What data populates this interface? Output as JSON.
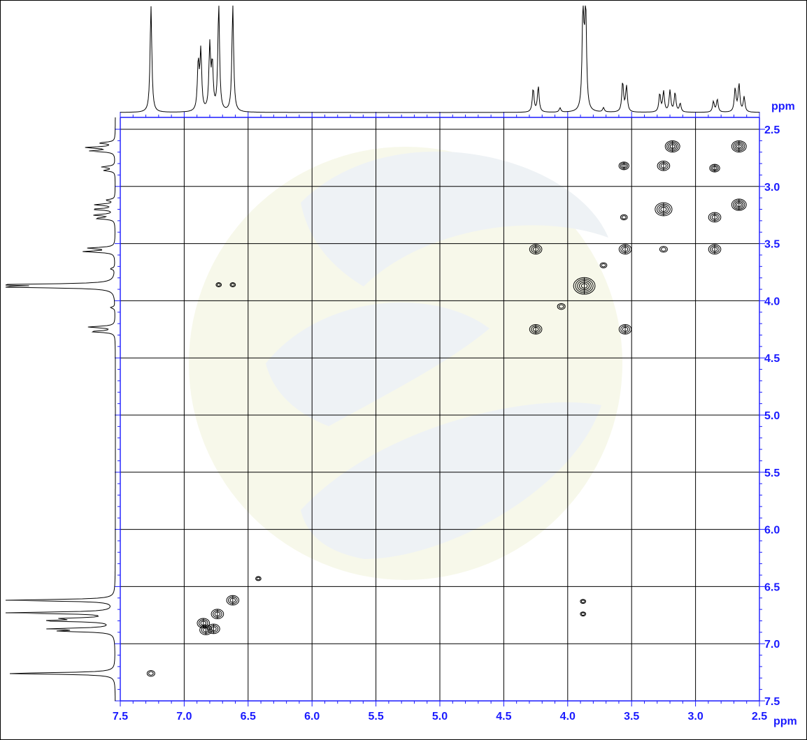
{
  "chart_data": {
    "type": "scatter",
    "title": "",
    "x_axis": {
      "unit_label": "ppm",
      "range": [
        7.5,
        2.5
      ],
      "reversed": true,
      "tick_labels": [
        "7.5",
        "7.0",
        "6.5",
        "6.0",
        "5.5",
        "5.0",
        "4.5",
        "4.0",
        "3.5",
        "3.0",
        "2.5"
      ]
    },
    "y_axis": {
      "unit_label": "ppm",
      "range": [
        2.5,
        7.5
      ],
      "position": "right",
      "tick_labels": [
        "2.5",
        "3.0",
        "3.5",
        "4.0",
        "4.5",
        "5.0",
        "5.5",
        "6.0",
        "6.5",
        "7.0",
        "7.5"
      ]
    },
    "grid": true,
    "projection_peaks": [
      {
        "shift": 7.26,
        "intensity": 1.0
      },
      {
        "shift": 6.89,
        "intensity": 0.45
      },
      {
        "shift": 6.87,
        "intensity": 0.55
      },
      {
        "shift": 6.8,
        "intensity": 0.6
      },
      {
        "shift": 6.78,
        "intensity": 0.42
      },
      {
        "shift": 6.73,
        "intensity": 1.0
      },
      {
        "shift": 6.62,
        "intensity": 1.0
      },
      {
        "shift": 4.27,
        "intensity": 0.22
      },
      {
        "shift": 4.23,
        "intensity": 0.24
      },
      {
        "shift": 4.06,
        "intensity": 0.04
      },
      {
        "shift": 3.88,
        "intensity": 1.0
      },
      {
        "shift": 3.86,
        "intensity": 1.0
      },
      {
        "shift": 3.72,
        "intensity": 0.04
      },
      {
        "shift": 3.57,
        "intensity": 0.28
      },
      {
        "shift": 3.54,
        "intensity": 0.24
      },
      {
        "shift": 3.28,
        "intensity": 0.17
      },
      {
        "shift": 3.25,
        "intensity": 0.19
      },
      {
        "shift": 3.2,
        "intensity": 0.2
      },
      {
        "shift": 3.16,
        "intensity": 0.18
      },
      {
        "shift": 3.12,
        "intensity": 0.08
      },
      {
        "shift": 2.86,
        "intensity": 0.1
      },
      {
        "shift": 2.83,
        "intensity": 0.12
      },
      {
        "shift": 2.69,
        "intensity": 0.22
      },
      {
        "shift": 2.66,
        "intensity": 0.26
      },
      {
        "shift": 2.62,
        "intensity": 0.14
      }
    ],
    "cross_peaks": [
      {
        "x": 7.26,
        "y": 7.26,
        "size": 1
      },
      {
        "x": 6.85,
        "y": 6.82,
        "size": 2
      },
      {
        "x": 6.83,
        "y": 6.88,
        "size": 2
      },
      {
        "x": 6.77,
        "y": 6.87,
        "size": 2
      },
      {
        "x": 6.74,
        "y": 6.74,
        "size": 2
      },
      {
        "x": 6.62,
        "y": 6.62,
        "size": 2
      },
      {
        "x": 6.42,
        "y": 6.43,
        "size": 0.5
      },
      {
        "x": 6.73,
        "y": 3.86,
        "size": 0.5
      },
      {
        "x": 6.62,
        "y": 3.86,
        "size": 0.5
      },
      {
        "x": 4.25,
        "y": 3.55,
        "size": 2
      },
      {
        "x": 4.25,
        "y": 4.25,
        "size": 2
      },
      {
        "x": 4.05,
        "y": 4.05,
        "size": 1
      },
      {
        "x": 3.87,
        "y": 3.87,
        "size": 4
      },
      {
        "x": 3.72,
        "y": 3.69,
        "size": 0.8
      },
      {
        "x": 3.88,
        "y": 6.63,
        "size": 0.5
      },
      {
        "x": 3.88,
        "y": 6.74,
        "size": 0.5
      },
      {
        "x": 3.56,
        "y": 2.82,
        "size": 1.5
      },
      {
        "x": 3.56,
        "y": 3.27,
        "size": 0.8
      },
      {
        "x": 3.55,
        "y": 3.55,
        "size": 2
      },
      {
        "x": 3.55,
        "y": 4.25,
        "size": 2
      },
      {
        "x": 3.25,
        "y": 2.82,
        "size": 2
      },
      {
        "x": 3.25,
        "y": 3.2,
        "size": 3
      },
      {
        "x": 3.25,
        "y": 3.55,
        "size": 1
      },
      {
        "x": 3.18,
        "y": 2.65,
        "size": 2.5
      },
      {
        "x": 2.85,
        "y": 2.84,
        "size": 1.5
      },
      {
        "x": 2.85,
        "y": 3.27,
        "size": 2
      },
      {
        "x": 2.85,
        "y": 3.55,
        "size": 2
      },
      {
        "x": 2.66,
        "y": 2.65,
        "size": 2.5
      },
      {
        "x": 2.66,
        "y": 3.16,
        "size": 2.5
      }
    ]
  }
}
